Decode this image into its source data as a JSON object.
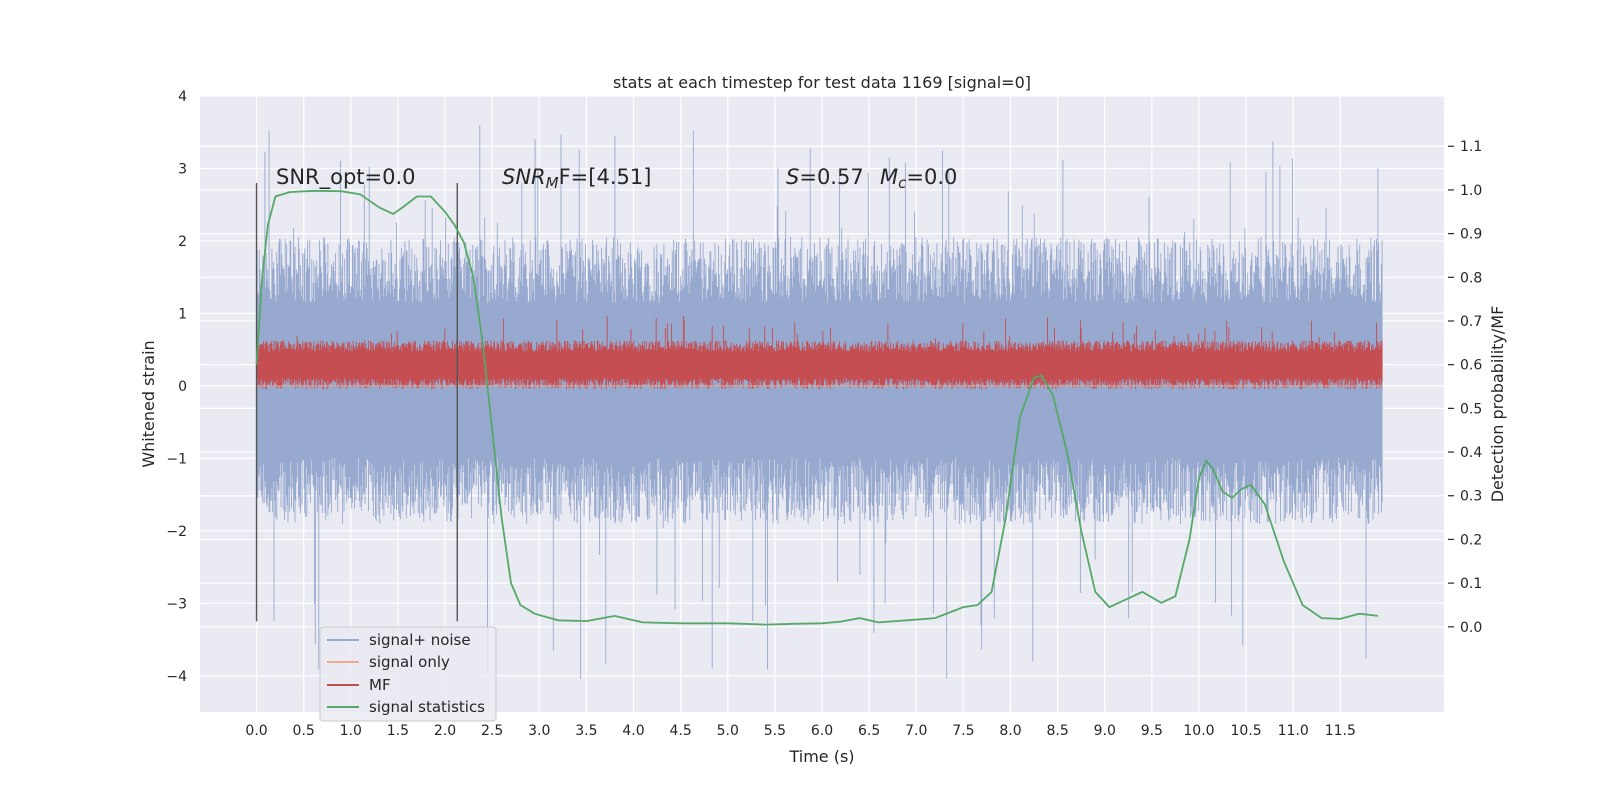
{
  "chart_data": {
    "type": "line",
    "title": "stats at each timestep for test data 1169 [signal=0]",
    "xlabel": "Time (s)",
    "ylabel": "Whitened strain",
    "y2label": "Detection probability/MF",
    "xlim": [
      -0.6,
      12.6
    ],
    "ylim": [
      -4.5,
      4.0
    ],
    "y2lim": [
      -0.195,
      1.215
    ],
    "xticks": [
      "0.0",
      "0.5",
      "1.0",
      "1.5",
      "2.0",
      "2.5",
      "3.0",
      "3.5",
      "4.0",
      "4.5",
      "5.0",
      "5.5",
      "6.0",
      "6.5",
      "7.0",
      "7.5",
      "8.0",
      "8.5",
      "9.0",
      "9.5",
      "10.0",
      "10.5",
      "11.0",
      "11.5"
    ],
    "yticks": [
      "4",
      "3",
      "2",
      "1",
      "0",
      "−1",
      "−2",
      "−3",
      "−4"
    ],
    "y2ticks": [
      "0.0",
      "0.1",
      "0.2",
      "0.3",
      "0.4",
      "0.5",
      "0.6",
      "0.7",
      "0.8",
      "0.9",
      "1.0",
      "1.1"
    ],
    "grid": true,
    "legend_position": "lower-left",
    "annotations": {
      "snr_opt": "SNR_opt=0.0",
      "snr_mf_main": "SNR",
      "snr_mf_sub": "M",
      "snr_mf_tail": "F=[4.51]",
      "s_var": "S",
      "s_val": "=0.57",
      "mc_var": "M",
      "mc_sub": "c",
      "mc_val": "=0.0"
    },
    "vlines_x": [
      0.0,
      2.13
    ],
    "series": [
      {
        "name": "signal+ noise",
        "color": "#97a9cf",
        "kind": "noise",
        "x_range": [
          0.0,
          11.95
        ],
        "typical_band": [
          -1.45,
          1.6
        ],
        "extremes": [
          -4.1,
          3.6
        ]
      },
      {
        "name": "signal only",
        "color": "#f0a88a",
        "kind": "flat",
        "value": 0.0
      },
      {
        "name": "MF",
        "color": "#c44e52",
        "kind": "noise",
        "x_range": [
          0.0,
          11.95
        ],
        "typical_band": [
          0.03,
          0.55
        ],
        "extremes": [
          0.0,
          0.97
        ]
      },
      {
        "name": "signal statistics",
        "color": "#55a868",
        "kind": "curve",
        "axis": "right",
        "x": [
          0.0,
          0.06,
          0.12,
          0.2,
          0.35,
          0.6,
          0.9,
          1.1,
          1.3,
          1.45,
          1.55,
          1.7,
          1.85,
          2.0,
          2.1,
          2.2,
          2.3,
          2.4,
          2.5,
          2.6,
          2.7,
          2.8,
          2.95,
          3.2,
          3.5,
          3.8,
          4.1,
          4.5,
          5.0,
          5.4,
          5.7,
          6.0,
          6.2,
          6.4,
          6.6,
          6.9,
          7.2,
          7.5,
          7.65,
          7.8,
          7.95,
          8.1,
          8.25,
          8.33,
          8.45,
          8.6,
          8.75,
          8.9,
          9.05,
          9.2,
          9.4,
          9.6,
          9.75,
          9.9,
          10.0,
          10.08,
          10.15,
          10.25,
          10.35,
          10.45,
          10.55,
          10.7,
          10.9,
          11.1,
          11.3,
          11.5,
          11.7,
          11.9
        ],
        "values": [
          0.6,
          0.8,
          0.92,
          0.985,
          0.995,
          0.998,
          0.997,
          0.99,
          0.96,
          0.945,
          0.96,
          0.985,
          0.985,
          0.95,
          0.92,
          0.88,
          0.8,
          0.65,
          0.45,
          0.25,
          0.1,
          0.05,
          0.03,
          0.015,
          0.013,
          0.025,
          0.01,
          0.008,
          0.008,
          0.005,
          0.007,
          0.008,
          0.012,
          0.02,
          0.01,
          0.015,
          0.02,
          0.045,
          0.05,
          0.08,
          0.25,
          0.48,
          0.57,
          0.575,
          0.53,
          0.4,
          0.22,
          0.08,
          0.045,
          0.06,
          0.08,
          0.055,
          0.07,
          0.2,
          0.34,
          0.38,
          0.36,
          0.31,
          0.295,
          0.315,
          0.325,
          0.28,
          0.15,
          0.05,
          0.02,
          0.018,
          0.03,
          0.025
        ]
      }
    ]
  }
}
